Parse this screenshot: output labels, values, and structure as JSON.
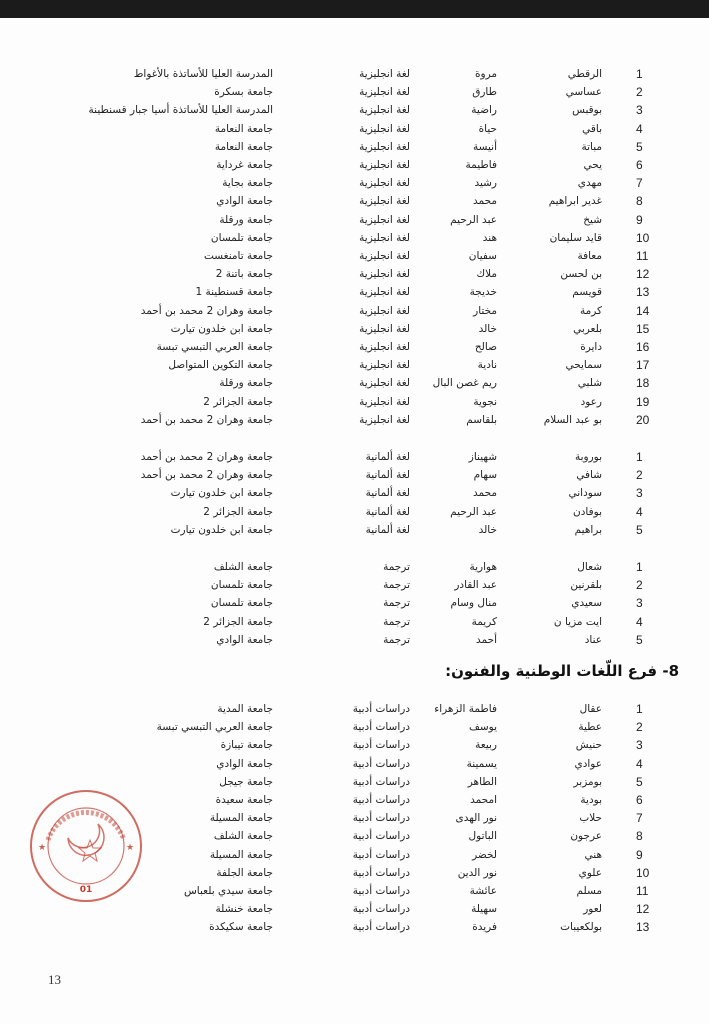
{
  "page_number": "13",
  "heading": "8- فرع اللّغات الوطنية والفنون:",
  "stamp": {
    "text": "وزارة التعليم العالي والبحث العلمي",
    "number": "01",
    "color": "#c0392b"
  },
  "sections": [
    {
      "rows": [
        [
          "1",
          "الرقطي",
          "مروة",
          "لغة انجليزية",
          "المدرسة العليا للأساتذة بالأغواط"
        ],
        [
          "2",
          "عساسي",
          "طارق",
          "لغة انجليزية",
          "جامعة بسكرة"
        ],
        [
          "3",
          "بوقبس",
          "راضية",
          "لغة انجليزية",
          "المدرسة العليا للأساتذة أسيا جبار قسنطينة"
        ],
        [
          "4",
          "باقي",
          "حياة",
          "لغة انجليزية",
          "جامعة النعامة"
        ],
        [
          "5",
          "مباتة",
          "أنيسة",
          "لغة انجليزية",
          "جامعة النعامة"
        ],
        [
          "6",
          "يحي",
          "فاطيمة",
          "لغة انجليزية",
          "جامعة غرداية"
        ],
        [
          "7",
          "مهدي",
          "رشيد",
          "لغة انجليزية",
          "جامعة بجاية"
        ],
        [
          "8",
          "غدير ابراهيم",
          "محمد",
          "لغة انجليزية",
          "جامعة الوادي"
        ],
        [
          "9",
          "شيخ",
          "عبد الرحيم",
          "لغة انجليزية",
          "جامعة ورقلة"
        ],
        [
          "10",
          "قايد سليمان",
          "هند",
          "لغة انجليزية",
          "جامعة تلمسان"
        ],
        [
          "11",
          "معافة",
          "سفيان",
          "لغة انجليزية",
          "جامعة تامنغست"
        ],
        [
          "12",
          "بن لحسن",
          "ملاك",
          "لغة انجليزية",
          "جامعة باتنة 2"
        ],
        [
          "13",
          "قويسم",
          "خديجة",
          "لغة انجليزية",
          "جامعة قسنطينة 1"
        ],
        [
          "14",
          "كرمة",
          "مختار",
          "لغة انجليزية",
          "جامعة وهران 2 محمد بن أحمد"
        ],
        [
          "15",
          "بلعربي",
          "خالد",
          "لغة انجليزية",
          "جامعة ابن خلدون تيارت"
        ],
        [
          "16",
          "دايرة",
          "صالح",
          "لغة انجليزية",
          "جامعة العربي التبسي تبسة"
        ],
        [
          "17",
          "سمايحي",
          "نادية",
          "لغة انجليزية",
          "جامعة التكوين المتواصل"
        ],
        [
          "18",
          "شلبي",
          "ريم غصن البال",
          "لغة انجليزية",
          "جامعة ورقلة"
        ],
        [
          "19",
          "رعود",
          "نجوية",
          "لغة انجليزية",
          "جامعة الجزائر 2"
        ],
        [
          "20",
          "بو عبد السلام",
          "بلقاسم",
          "لغة انجليزية",
          "جامعة وهران 2 محمد بن أحمد"
        ]
      ]
    },
    {
      "rows": [
        [
          "1",
          "بوروبة",
          "شهيناز",
          "لغة ألمانية",
          "جامعة وهران 2 محمد بن أحمد"
        ],
        [
          "2",
          "شافي",
          "سهام",
          "لغة ألمانية",
          "جامعة وهران 2 محمد بن أحمد"
        ],
        [
          "3",
          "سوداني",
          "محمد",
          "لغة ألمانية",
          "جامعة ابن خلدون تيارت"
        ],
        [
          "4",
          "بوفادن",
          "عبد الرحيم",
          "لغة ألمانية",
          "جامعة الجزائر 2"
        ],
        [
          "5",
          "براهيم",
          "خالد",
          "لغة ألمانية",
          "جامعة ابن خلدون تيارت"
        ]
      ]
    },
    {
      "rows": [
        [
          "1",
          "شعال",
          "هوارية",
          "ترجمة",
          "جامعة الشلف"
        ],
        [
          "2",
          "بلقرنين",
          "عبد القادر",
          "ترجمة",
          "جامعة تلمسان"
        ],
        [
          "3",
          "سعيدي",
          "منال وسام",
          "ترجمة",
          "جامعة تلمسان"
        ],
        [
          "4",
          "ايت مزيا ن",
          "كريمة",
          "ترجمة",
          "جامعة الجزائر 2"
        ],
        [
          "5",
          "عناد",
          "أحمد",
          "ترجمة",
          "جامعة الوادي"
        ]
      ]
    },
    {
      "rows": [
        [
          "1",
          "عقال",
          "فاطمة الزهراء",
          "دراسات أدبية",
          "جامعة المدية"
        ],
        [
          "2",
          "عطية",
          "يوسف",
          "دراسات أدبية",
          "جامعة العربي التبسي تبسة"
        ],
        [
          "3",
          "حنيش",
          "ربيعة",
          "دراسات أدبية",
          "جامعة تيبازة"
        ],
        [
          "4",
          "عوادي",
          "يسمينة",
          "دراسات أدبية",
          "جامعة الوادي"
        ],
        [
          "5",
          "بومزبر",
          "الطاهر",
          "دراسات أدبية",
          "جامعة جيجل"
        ],
        [
          "6",
          "بودية",
          "امحمد",
          "دراسات أدبية",
          "جامعة سعيدة"
        ],
        [
          "7",
          "حلاب",
          "نور الهدى",
          "دراسات أدبية",
          "جامعة المسيلة"
        ],
        [
          "8",
          "عرجون",
          "الباتول",
          "دراسات أدبية",
          "جامعة الشلف"
        ],
        [
          "9",
          "هني",
          "لخضر",
          "دراسات أدبية",
          "جامعة المسيلة"
        ],
        [
          "10",
          "علوي",
          "نور الدين",
          "دراسات أدبية",
          "جامعة الجلفة"
        ],
        [
          "11",
          "مسلم",
          "عائشة",
          "دراسات أدبية",
          "جامعة سيدي بلعباس"
        ],
        [
          "12",
          "لعور",
          "سهيلة",
          "دراسات أدبية",
          "جامعة خنشلة"
        ],
        [
          "13",
          "بولكعيبات",
          "فريدة",
          "دراسات أدبية",
          "جامعة سكيكدة"
        ]
      ]
    }
  ]
}
